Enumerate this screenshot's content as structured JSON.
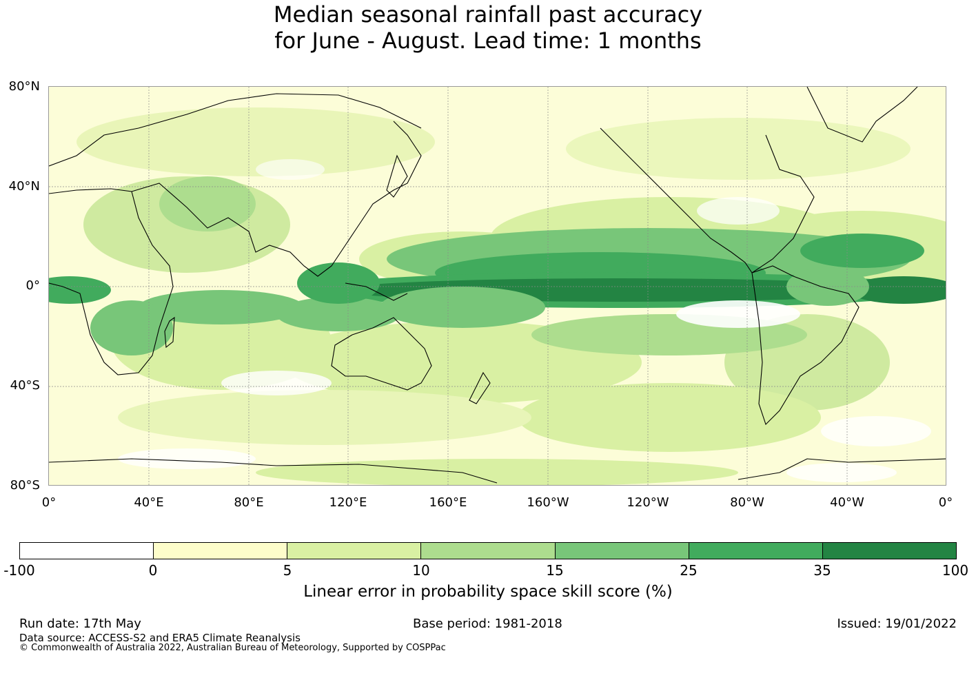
{
  "title": {
    "line1": "Median seasonal rainfall past accuracy",
    "line2": "for June - August. Lead time: 1 months"
  },
  "map": {
    "lat_labels": [
      "80°N",
      "40°N",
      "0°",
      "40°S",
      "80°S"
    ],
    "lon_labels": [
      "0°",
      "40°E",
      "80°E",
      "120°E",
      "160°E",
      "160°W",
      "120°W",
      "80°W",
      "40°W",
      "0°"
    ]
  },
  "colorbar": {
    "title": "Linear error in probability space skill score (%)",
    "ticks": [
      "-100",
      "0",
      "5",
      "10",
      "15",
      "25",
      "35",
      "100"
    ],
    "colors": [
      "#ffffff",
      "#fdfdca",
      "#d9f0a3",
      "#addd8e",
      "#78c679",
      "#41ab5d",
      "#238443"
    ]
  },
  "footer": {
    "run_date": "Run date: 17th May",
    "base_period": "Base period: 1981-2018",
    "issued": "Issued: 19/01/2022",
    "data_source": "Data source: ACCESS-S2 and ERA5 Climate Reanalysis",
    "copyright": "© Commonwealth of Australia 2022, Australian Bureau of Meteorology, Supported by COSPPac"
  }
}
